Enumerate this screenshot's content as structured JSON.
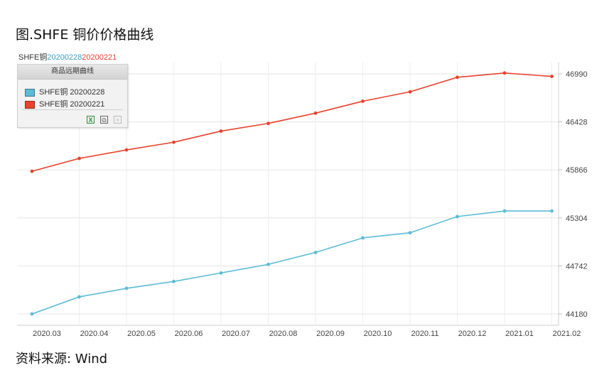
{
  "figure": {
    "title": "图.SHFE 铜价价格曲线",
    "source": "资料来源: Wind"
  },
  "legend_box": {
    "title": "商品远期曲线",
    "tools": [
      "excel-icon",
      "copy-icon",
      "close-icon"
    ]
  },
  "chart_data": {
    "type": "line",
    "title_parts": [
      "SHFE铜",
      "20200228",
      "20200221"
    ],
    "title_colors": [
      "#333333",
      "#3aa0c8",
      "#e8432e"
    ],
    "categories": [
      "2020.03",
      "2020.04",
      "2020.05",
      "2020.06",
      "2020.07",
      "2020.08",
      "2020.09",
      "2020.10",
      "2020.11",
      "2020.12",
      "2021.01",
      "2021.02"
    ],
    "x_index": [
      0,
      1,
      2,
      3,
      4,
      5,
      6,
      7,
      8,
      9,
      10,
      11
    ],
    "y_ticks": [
      44180,
      44742,
      45304,
      45866,
      46428,
      46990
    ],
    "ylim": [
      44120,
      47080
    ],
    "grid": true,
    "axis_position": "right",
    "legend_position": "top-left",
    "series": [
      {
        "name": "SHFE铜 20200228",
        "color": "#5bbcd6",
        "values": [
          44180,
          44380,
          44480,
          44560,
          44660,
          44760,
          44900,
          45070,
          45130,
          45320,
          45385,
          45385
        ]
      },
      {
        "name": "SHFE铜 20200221",
        "color": "#e8432e",
        "values": [
          45850,
          46000,
          46100,
          46190,
          46320,
          46410,
          46530,
          46670,
          46780,
          46950,
          47000,
          46960
        ]
      }
    ]
  }
}
